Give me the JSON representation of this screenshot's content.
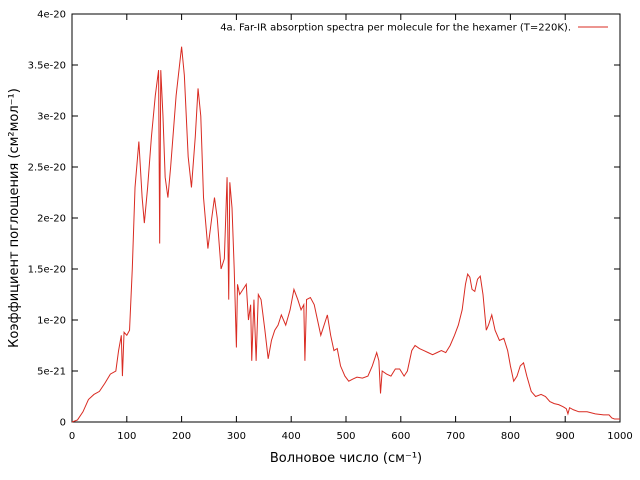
{
  "chart_data": {
    "type": "line",
    "xlabel": "Волновое число (см⁻¹)",
    "ylabel": "Коэффициент поглощения (см²мол⁻¹)",
    "legend": "top-right",
    "grid": false,
    "xlim": [
      0,
      1000
    ],
    "xticks": [
      0,
      100,
      200,
      300,
      400,
      500,
      600,
      700,
      800,
      900,
      1000
    ],
    "ylim": [
      0,
      4e-20
    ],
    "yticks": [
      0,
      5e-21,
      1e-20,
      1.5e-20,
      2e-20,
      2.5e-20,
      3e-20,
      3.5e-20,
      4e-20
    ],
    "series": [
      {
        "name": "4a. Far-IR absorption spectra per molecule for the hexamer (T=220K).",
        "color": "#d92b22",
        "x": [
          0,
          10,
          20,
          30,
          40,
          50,
          60,
          70,
          80,
          85,
          90,
          92,
          95,
          100,
          105,
          110,
          115,
          122,
          128,
          132,
          138,
          145,
          152,
          158,
          160,
          162,
          166,
          170,
          175,
          180,
          190,
          200,
          205,
          212,
          218,
          225,
          230,
          235,
          240,
          248,
          255,
          260,
          265,
          272,
          278,
          283,
          286,
          288,
          292,
          296,
          300,
          302,
          306,
          312,
          318,
          322,
          326,
          328,
          332,
          336,
          340,
          345,
          352,
          358,
          364,
          370,
          376,
          382,
          390,
          398,
          405,
          412,
          418,
          423,
          425,
          428,
          435,
          442,
          448,
          454,
          460,
          466,
          472,
          478,
          484,
          490,
          498,
          505,
          512,
          520,
          530,
          540,
          548,
          556,
          560,
          563,
          566,
          574,
          582,
          590,
          598,
          606,
          612,
          620,
          626,
          634,
          642,
          650,
          658,
          666,
          674,
          682,
          690,
          698,
          705,
          712,
          718,
          722,
          726,
          730,
          735,
          740,
          745,
          750,
          756,
          760,
          766,
          772,
          780,
          788,
          795,
          800,
          806,
          812,
          818,
          824,
          830,
          838,
          846,
          856,
          864,
          872,
          880,
          888,
          896,
          902,
          905,
          908,
          915,
          925,
          940,
          955,
          970,
          980,
          985,
          990,
          1000
        ],
        "values": [
          0,
          2e-22,
          1e-21,
          2.2e-21,
          2.7e-21,
          3e-21,
          3.8e-21,
          4.7e-21,
          5e-21,
          7e-21,
          8.5e-21,
          4.5e-21,
          8.8e-21,
          8.5e-21,
          9e-21,
          1.5e-20,
          2.3e-20,
          2.75e-20,
          2.2e-20,
          1.95e-20,
          2.3e-20,
          2.8e-20,
          3.2e-20,
          3.45e-20,
          1.75e-20,
          3.45e-20,
          3e-20,
          2.4e-20,
          2.2e-20,
          2.5e-20,
          3.2e-20,
          3.68e-20,
          3.4e-20,
          2.6e-20,
          2.3e-20,
          2.8e-20,
          3.27e-20,
          3e-20,
          2.2e-20,
          1.7e-20,
          2e-20,
          2.2e-20,
          2e-20,
          1.5e-20,
          1.6e-20,
          2.4e-20,
          1.2e-20,
          2.35e-20,
          2.1e-20,
          1.5e-20,
          7.3e-21,
          1.35e-20,
          1.25e-20,
          1.3e-20,
          1.35e-20,
          1e-20,
          1.15e-20,
          6e-21,
          1.2e-20,
          6e-21,
          1.25e-20,
          1.2e-20,
          9e-21,
          6.2e-21,
          8e-21,
          9e-21,
          9.5e-21,
          1.05e-20,
          9.5e-21,
          1.1e-20,
          1.3e-20,
          1.2e-20,
          1.1e-20,
          1.15e-20,
          6e-21,
          1.2e-20,
          1.22e-20,
          1.15e-20,
          1e-20,
          8.5e-21,
          9.5e-21,
          1.05e-20,
          8.5e-21,
          7e-21,
          7.2e-21,
          5.5e-21,
          4.5e-21,
          4e-21,
          4.2e-21,
          4.4e-21,
          4.3e-21,
          4.5e-21,
          5.5e-21,
          6.8e-21,
          6e-21,
          2.8e-21,
          5e-21,
          4.7e-21,
          4.5e-21,
          5.2e-21,
          5.2e-21,
          4.5e-21,
          5e-21,
          7e-21,
          7.5e-21,
          7.2e-21,
          7e-21,
          6.8e-21,
          6.6e-21,
          6.8e-21,
          7e-21,
          6.8e-21,
          7.5e-21,
          8.5e-21,
          9.5e-21,
          1.1e-20,
          1.35e-20,
          1.45e-20,
          1.42e-20,
          1.3e-20,
          1.28e-20,
          1.4e-20,
          1.43e-20,
          1.25e-20,
          9e-21,
          9.5e-21,
          1.05e-20,
          9e-21,
          8e-21,
          8.2e-21,
          7e-21,
          5.5e-21,
          4e-21,
          4.5e-21,
          5.5e-21,
          5.8e-21,
          4.5e-21,
          3e-21,
          2.5e-21,
          2.7e-21,
          2.5e-21,
          2e-21,
          1.8e-21,
          1.7e-21,
          1.5e-21,
          1.3e-21,
          8e-22,
          1.4e-21,
          1.2e-21,
          1e-21,
          1e-21,
          8e-22,
          7e-22,
          7e-22,
          4e-22,
          3e-22,
          3e-22
        ]
      }
    ]
  }
}
